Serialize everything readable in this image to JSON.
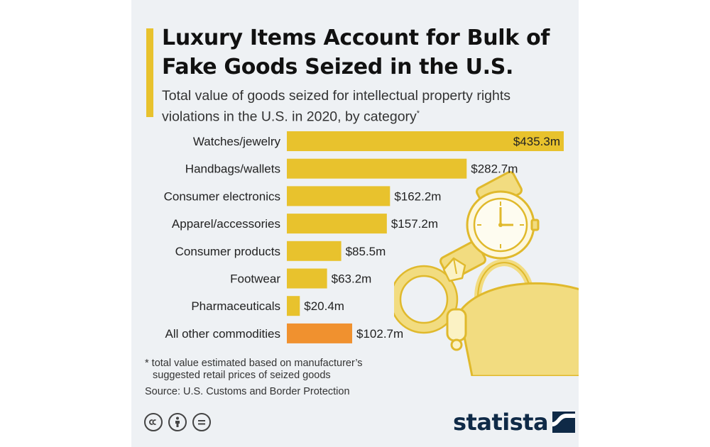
{
  "header": {
    "title": "Luxury Items Account for Bulk of Fake Goods Seized in the U.S.",
    "subtitle": "Total value of goods seized for intellectual property rights violations in the U.S. in 2020, by category",
    "subtitle_marker": "*"
  },
  "colors": {
    "accent": "#e8c22d",
    "bar": "#e8c22d",
    "highlight": "#f0912f",
    "brand": "#0f2a47"
  },
  "chart_data": {
    "type": "bar",
    "orientation": "horizontal",
    "categories": [
      "Watches/jewelry",
      "Handbags/wallets",
      "Consumer electronics",
      "Apparel/accessories",
      "Consumer products",
      "Footwear",
      "Pharmaceuticals",
      "All other commodities"
    ],
    "values": [
      435.3,
      282.7,
      162.2,
      157.2,
      85.5,
      63.2,
      20.4,
      102.7
    ],
    "value_labels": [
      "$435.3m",
      "$282.7m",
      "$162.2m",
      "$157.2m",
      "$85.5m",
      "$63.2m",
      "$20.4m",
      "$102.7m"
    ],
    "highlighted_category": "All other commodities",
    "unit": "million U.S. dollars",
    "grid": false,
    "legend": "none",
    "xlim": [
      0,
      435.3
    ]
  },
  "footnote": {
    "line1": "* total value estimated based on manufacturer’s",
    "line2": "suggested retail prices of seized goods"
  },
  "source": "Source: U.S. Customs and Border Protection",
  "license_icons": [
    "creative-commons-icon",
    "attribution-icon",
    "no-derivatives-icon"
  ],
  "brand": {
    "logo_text": "statista",
    "logo_icon": "statista-logo-icon"
  },
  "illustration_icons": [
    "watch-icon",
    "ring-icon",
    "handbag-icon"
  ]
}
